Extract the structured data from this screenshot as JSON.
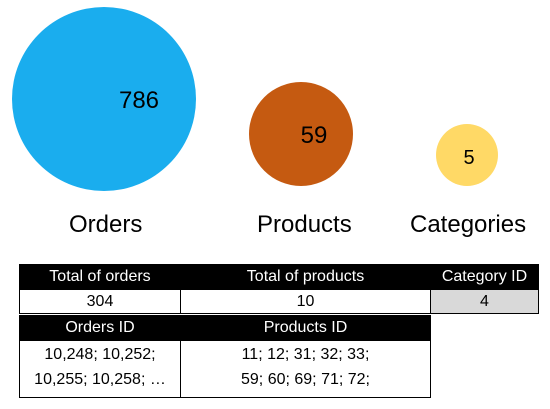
{
  "bubbles": [
    {
      "value": "786",
      "label": "Orders",
      "color": "#1aadee"
    },
    {
      "value": "59",
      "label": "Products",
      "color": "#c55a11"
    },
    {
      "value": "5",
      "label": "Categories",
      "color": "#ffd966"
    }
  ],
  "table": {
    "total_orders_header": "Total of orders",
    "total_products_header": "Total of products",
    "category_id_header": "Category ID",
    "total_orders_value": "304",
    "total_products_value": "10",
    "category_id_value": "4",
    "orders_id_header": "Orders ID",
    "products_id_header": "Products ID",
    "orders_id_lines": [
      "10,248; 10,252;",
      "10,255; 10,258; …"
    ],
    "products_id_lines": [
      "11; 12; 31; 32; 33;",
      "59; 60; 69; 71; 72;"
    ]
  }
}
